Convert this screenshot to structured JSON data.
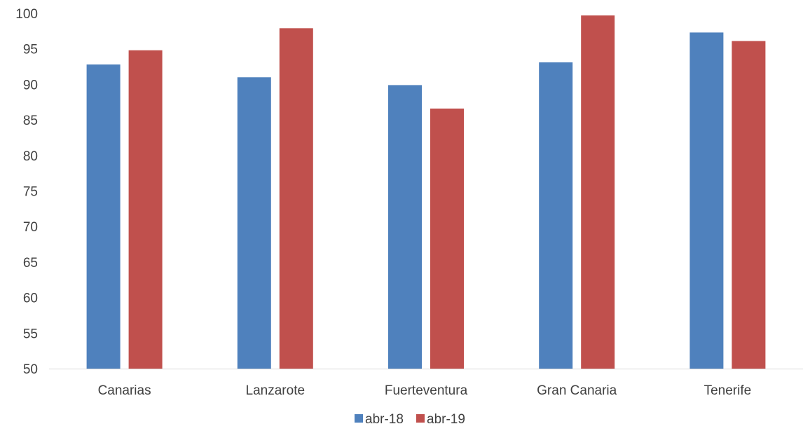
{
  "chart_data": {
    "type": "bar",
    "categories": [
      "Canarias",
      "Lanzarote",
      "Fuerteventura",
      "Gran Canaria",
      "Tenerife"
    ],
    "series": [
      {
        "name": "abr-18",
        "color": "#4f81bd",
        "values": [
          92.8,
          91.0,
          89.9,
          93.1,
          97.3
        ]
      },
      {
        "name": "abr-19",
        "color": "#c0504d",
        "values": [
          94.8,
          97.9,
          86.6,
          99.7,
          96.1
        ]
      }
    ],
    "ylim": [
      50,
      100
    ],
    "yticks": [
      "50",
      "55",
      "60",
      "65",
      "70",
      "75",
      "80",
      "85",
      "90",
      "95",
      "100"
    ],
    "grid": false,
    "legend_position": "bottom",
    "title": "",
    "xlabel": "",
    "ylabel": ""
  }
}
